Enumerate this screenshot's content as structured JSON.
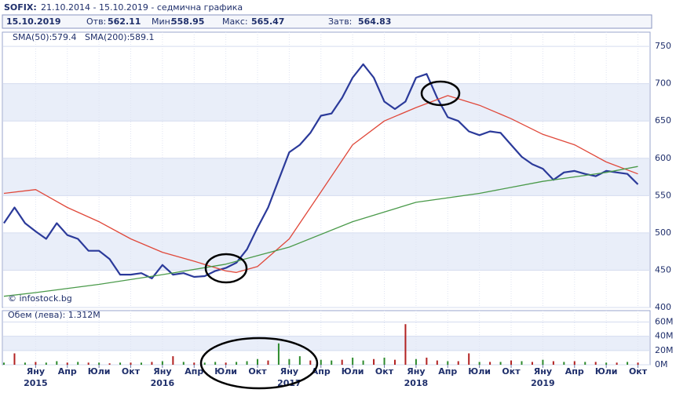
{
  "header": {
    "title": "SOFIX:",
    "range": "21.10.2014 - 15.10.2019 - седмична графика"
  },
  "quote": {
    "date": "15.10.2019",
    "open_label": "Отв:",
    "open": 562.11,
    "low_label": "Мин:",
    "low": 558.95,
    "high_label": "Макс:",
    "high": 565.47,
    "close_label": "Затв:",
    "close": 564.83
  },
  "watermark": "© infostock.bg",
  "chart_data": [
    {
      "type": "line",
      "xlim": [
        "2014-10",
        "2019-11"
      ],
      "ylim": [
        400,
        769
      ],
      "yticks": [
        400,
        450,
        500,
        550,
        600,
        650,
        700,
        750
      ],
      "series": [
        {
          "color": "#2b3a9a",
          "x": [
            "2014-10",
            "2014-11",
            "2014-12",
            "2015-01",
            "2015-02",
            "2015-03",
            "2015-04",
            "2015-05",
            "2015-06",
            "2015-07",
            "2015-08",
            "2015-09",
            "2015-10",
            "2015-11",
            "2015-12",
            "2016-01",
            "2016-02",
            "2016-03",
            "2016-04",
            "2016-05",
            "2016-06",
            "2016-07",
            "2016-08",
            "2016-09",
            "2016-10",
            "2016-11",
            "2016-12",
            "2017-01",
            "2017-02",
            "2017-03",
            "2017-04",
            "2017-05",
            "2017-06",
            "2017-07",
            "2017-08",
            "2017-09",
            "2017-10",
            "2017-11",
            "2017-12",
            "2018-01",
            "2018-02",
            "2018-03",
            "2018-04",
            "2018-05",
            "2018-06",
            "2018-07",
            "2018-08",
            "2018-09",
            "2018-10",
            "2018-11",
            "2018-12",
            "2019-01",
            "2019-02",
            "2019-03",
            "2019-04",
            "2019-05",
            "2019-06",
            "2019-07",
            "2019-08",
            "2019-09",
            "2019-10"
          ],
          "values": [
            513,
            534,
            513,
            502,
            492,
            513,
            497,
            492,
            476,
            476,
            465,
            444,
            444,
            446,
            439,
            457,
            444,
            446,
            441,
            442,
            449,
            453,
            460,
            478,
            507,
            534,
            571,
            608,
            618,
            634,
            657,
            660,
            681,
            708,
            726,
            708,
            676,
            666,
            676,
            708,
            713,
            681,
            655,
            650,
            636,
            631,
            636,
            634,
            618,
            602,
            592,
            586,
            571,
            581,
            583,
            579,
            576,
            583,
            581,
            579,
            565
          ]
        },
        {
          "name": "SMA(50):",
          "last_value": 579.4,
          "color": "#e0483a",
          "x": [
            "2014-10",
            "2015-01",
            "2015-04",
            "2015-07",
            "2015-10",
            "2016-01",
            "2016-04",
            "2016-07",
            "2016-08",
            "2016-10",
            "2017-01",
            "2017-04",
            "2017-07",
            "2017-10",
            "2018-01",
            "2018-04",
            "2018-07",
            "2018-10",
            "2019-01",
            "2019-04",
            "2019-07",
            "2019-10"
          ],
          "values": [
            553,
            558,
            534,
            515,
            492,
            474,
            462,
            449,
            447,
            455,
            492,
            555,
            618,
            650,
            668,
            684,
            671,
            653,
            632,
            618,
            595,
            579
          ]
        },
        {
          "name": "SMA(200):",
          "last_value": 589.1,
          "color": "#4a9a4a",
          "x": [
            "2014-10",
            "2015-01",
            "2015-07",
            "2016-01",
            "2016-07",
            "2017-01",
            "2017-07",
            "2018-01",
            "2018-07",
            "2019-01",
            "2019-07",
            "2019-10"
          ],
          "values": [
            415,
            420,
            431,
            444,
            458,
            481,
            515,
            541,
            553,
            569,
            581,
            589
          ]
        }
      ]
    },
    {
      "type": "bar",
      "title": "Обем (лева): 1.312M",
      "xlim": [
        "2014-10",
        "2019-11"
      ],
      "ylim": [
        0,
        76
      ],
      "yticks": [
        {
          "value": 0,
          "label": "0M"
        },
        {
          "value": 20,
          "label": "20M"
        },
        {
          "value": 40,
          "label": "40M"
        },
        {
          "value": 60,
          "label": "60M"
        }
      ],
      "x": [
        "2014-10",
        "2014-11",
        "2014-12",
        "2015-01",
        "2015-02",
        "2015-03",
        "2015-04",
        "2015-05",
        "2015-06",
        "2015-07",
        "2015-08",
        "2015-09",
        "2015-10",
        "2015-11",
        "2015-12",
        "2016-01",
        "2016-02",
        "2016-03",
        "2016-04",
        "2016-05",
        "2016-06",
        "2016-07",
        "2016-08",
        "2016-09",
        "2016-10",
        "2016-11",
        "2016-12",
        "2017-01",
        "2017-02",
        "2017-03",
        "2017-04",
        "2017-05",
        "2017-06",
        "2017-07",
        "2017-08",
        "2017-09",
        "2017-10",
        "2017-11",
        "2017-12",
        "2018-01",
        "2018-02",
        "2018-03",
        "2018-04",
        "2018-05",
        "2018-06",
        "2018-07",
        "2018-08",
        "2018-09",
        "2018-10",
        "2018-11",
        "2018-12",
        "2019-01",
        "2019-02",
        "2019-03",
        "2019-04",
        "2019-05",
        "2019-06",
        "2019-07",
        "2019-08",
        "2019-09",
        "2019-10"
      ],
      "values": [
        3,
        16,
        3,
        4,
        3,
        5,
        3,
        4,
        3,
        3,
        2,
        3,
        3,
        3,
        4,
        5,
        12,
        4,
        3,
        3,
        4,
        3,
        4,
        5,
        8,
        6,
        30,
        8,
        12,
        6,
        7,
        6,
        7,
        10,
        6,
        8,
        10,
        7,
        57,
        8,
        10,
        6,
        5,
        5,
        16,
        4,
        4,
        4,
        6,
        5,
        4,
        7,
        5,
        4,
        5,
        4,
        4,
        3,
        3,
        4,
        3
      ],
      "colors": [
        "#2e8b2e",
        "#b22222",
        "#2e8b2e",
        "#b22222",
        "#2e8b2e",
        "#2e8b2e",
        "#b22222",
        "#2e8b2e",
        "#b22222",
        "#2e8b2e",
        "#b22222",
        "#2e8b2e",
        "#b22222",
        "#2e8b2e",
        "#b22222",
        "#2e8b2e",
        "#b22222",
        "#2e8b2e",
        "#b22222",
        "#2e8b2e",
        "#2e8b2e",
        "#b22222",
        "#2e8b2e",
        "#2e8b2e",
        "#2e8b2e",
        "#b22222",
        "#2e8b2e",
        "#2e8b2e",
        "#2e8b2e",
        "#b22222",
        "#2e8b2e",
        "#2e8b2e",
        "#b22222",
        "#2e8b2e",
        "#2e8b2e",
        "#b22222",
        "#2e8b2e",
        "#b22222",
        "#b22222",
        "#2e8b2e",
        "#b22222",
        "#b22222",
        "#2e8b2e",
        "#b22222",
        "#b22222",
        "#2e8b2e",
        "#b22222",
        "#2e8b2e",
        "#b22222",
        "#2e8b2e",
        "#b22222",
        "#2e8b2e",
        "#b22222",
        "#2e8b2e",
        "#b22222",
        "#2e8b2e",
        "#b22222",
        "#2e8b2e",
        "#b22222",
        "#2e8b2e",
        "#b22222"
      ],
      "xticks": [
        {
          "value": "2015-01",
          "label": "Яну"
        },
        {
          "value": "2015-04",
          "label": "Апр"
        },
        {
          "value": "2015-07",
          "label": "Юли"
        },
        {
          "value": "2015-10",
          "label": "Окт"
        },
        {
          "value": "2016-01",
          "label": "Яну"
        },
        {
          "value": "2016-04",
          "label": "Апр"
        },
        {
          "value": "2016-07",
          "label": "Юли"
        },
        {
          "value": "2016-10",
          "label": "Окт"
        },
        {
          "value": "2017-01",
          "label": "Яну"
        },
        {
          "value": "2017-04",
          "label": "Апр"
        },
        {
          "value": "2017-07",
          "label": "Юли"
        },
        {
          "value": "2017-10",
          "label": "Окт"
        },
        {
          "value": "2018-01",
          "label": "Яну"
        },
        {
          "value": "2018-04",
          "label": "Апр"
        },
        {
          "value": "2018-07",
          "label": "Юли"
        },
        {
          "value": "2018-10",
          "label": "Окт"
        },
        {
          "value": "2019-01",
          "label": "Яну"
        },
        {
          "value": "2019-04",
          "label": "Апр"
        },
        {
          "value": "2019-07",
          "label": "Юли"
        },
        {
          "value": "2019-10",
          "label": "Окт"
        }
      ],
      "year_labels": [
        {
          "value": "2015-01",
          "label": "2015"
        },
        {
          "value": "2016-01",
          "label": "2016"
        },
        {
          "value": "2017-01",
          "label": "2017"
        },
        {
          "value": "2018-01",
          "label": "2018"
        },
        {
          "value": "2019-01",
          "label": "2019"
        }
      ]
    }
  ]
}
